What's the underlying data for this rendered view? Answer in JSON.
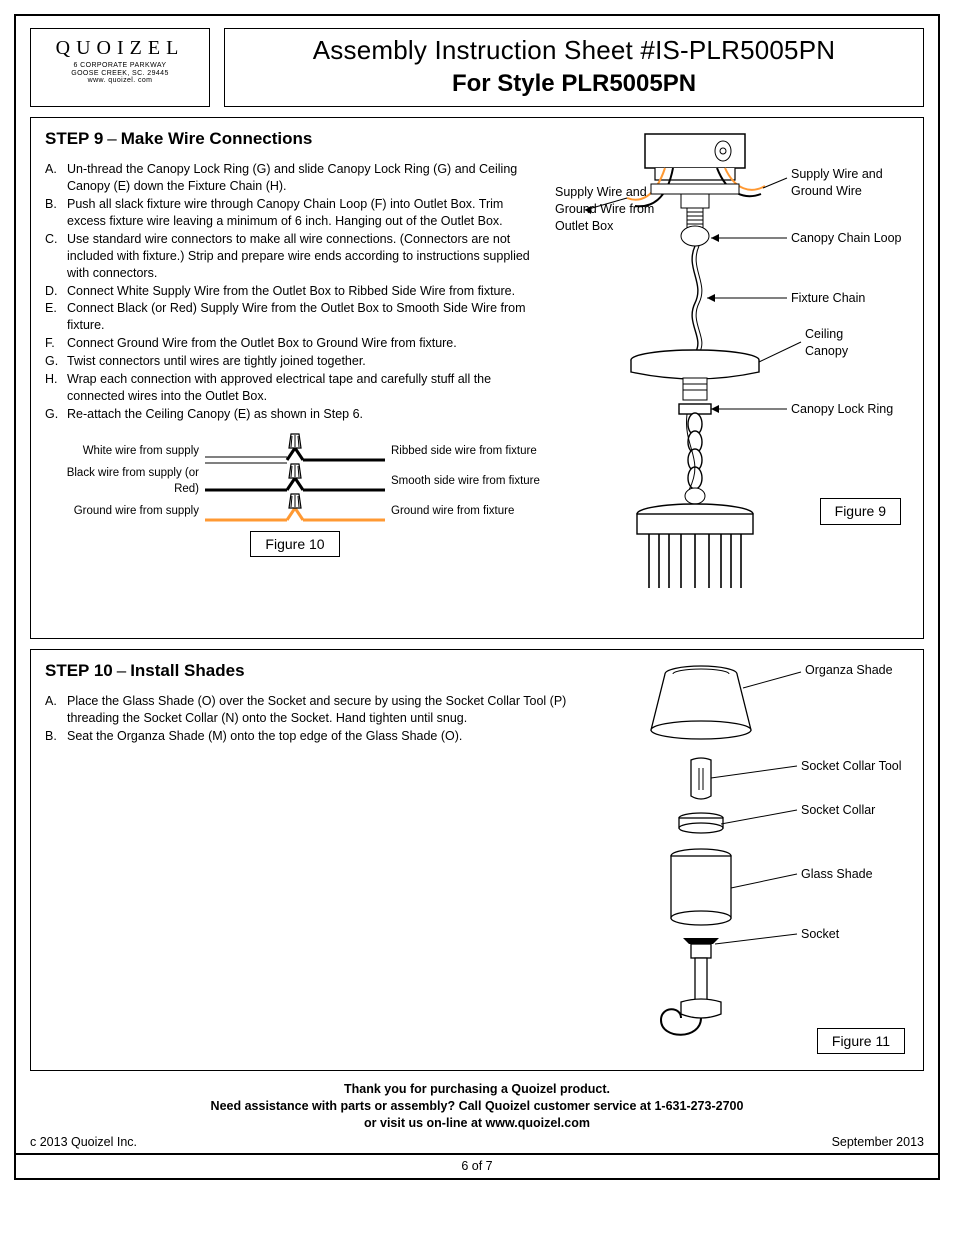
{
  "brand": {
    "name": "QUOIZEL",
    "addr1": "6 CORPORATE PARKWAY",
    "addr2": "GOOSE CREEK, SC. 29445",
    "addr3": "www. quoizel. com"
  },
  "title": {
    "line1": "Assembly Instruction Sheet #IS-PLR5005PN",
    "line2": "For Style PLR5005PN"
  },
  "step9": {
    "title_prefix": "STEP 9",
    "title_suffix": "Make Wire Connections",
    "items": [
      {
        "lbl": "A.",
        "txt": "Un-thread the Canopy Lock Ring (G) and slide Canopy Lock Ring (G) and Ceiling Canopy (E) down the Fixture Chain (H)."
      },
      {
        "lbl": "B.",
        "txt": "Push all slack fixture wire through Canopy Chain Loop (F) into Outlet Box. Trim excess fixture wire leaving a minimum of 6 inch. Hanging out of the Outlet Box."
      },
      {
        "lbl": "C.",
        "txt": "Use standard wire connectors to make all wire connections. (Connectors are not included with fixture.) Strip and prepare wire ends according to instructions supplied with connectors."
      },
      {
        "lbl": "D.",
        "txt": "Connect White Supply Wire from the Outlet Box to Ribbed Side Wire from fixture."
      },
      {
        "lbl": "E.",
        "txt": "Connect Black (or Red) Supply Wire from the Outlet Box to Smooth Side Wire from fixture."
      },
      {
        "lbl": "F.",
        "txt": "Connect Ground Wire from the Outlet Box to Ground Wire from fixture."
      },
      {
        "lbl": "G.",
        "txt": "Twist connectors until wires are tightly joined together."
      },
      {
        "lbl": "H.",
        "txt": "Wrap each connection with approved electrical tape and carefully stuff all the connected wires into the Outlet Box."
      },
      {
        "lbl": "G.",
        "txt": "Re-attach the Ceiling Canopy (E) as shown in Step 6."
      }
    ],
    "wire_rows": [
      {
        "left": "White wire from supply",
        "right": "Ribbed side wire from fixture",
        "lcolor": "#000000",
        "rcolor": "#000000",
        "connector": "#ff9933"
      },
      {
        "left": "Black wire from supply (or Red)",
        "right": "Smooth side wire from fixture",
        "lcolor": "#000000",
        "rcolor": "#000000",
        "connector": "#ff9933"
      },
      {
        "left": "Ground wire from supply",
        "right": "Ground wire from fixture",
        "lcolor": "#ff9933",
        "rcolor": "#ff9933",
        "connector": "#ff9933"
      }
    ],
    "fig10_label": "Figure 10",
    "fig9_label": "Figure 9",
    "fig9_callouts": {
      "supply_box": "Supply Wire and Ground Wire from Outlet Box",
      "supply_gnd": "Supply Wire and Ground Wire",
      "chain_loop": "Canopy Chain Loop",
      "fixture_chain": "Fixture Chain",
      "ceiling_canopy": "Ceiling Canopy",
      "lock_ring": "Canopy Lock Ring",
      "ceiling_canopy_l1": "Ceiling",
      "ceiling_canopy_l2": "Canopy"
    }
  },
  "step10": {
    "title_prefix": "STEP 10",
    "title_suffix": "Install Shades",
    "items": [
      {
        "lbl": "A.",
        "txt": "Place the Glass Shade (O) over the Socket and secure by using the Socket Collar Tool (P) threading the Socket Collar (N) onto the Socket. Hand tighten until snug."
      },
      {
        "lbl": "B.",
        "txt": "Seat the Organza Shade (M) onto the top edge of the Glass Shade (O)."
      }
    ],
    "fig11_label": "Figure 11",
    "callouts": {
      "organza": "Organza Shade",
      "tool": "Socket Collar  Tool",
      "collar": "Socket Collar",
      "glass": "Glass Shade",
      "socket": "Socket"
    }
  },
  "footer": {
    "l1": "Thank you for purchasing a Quoizel product.",
    "l2": "Need assistance with parts or assembly? Call Quoizel customer service at 1-631-273-2700",
    "l3": "or visit us on-line at www.quoizel.com",
    "copyright": "c  2013  Quoizel Inc.",
    "date": "September 2013",
    "page": "6 of 7"
  },
  "colors": {
    "line": "#000000",
    "accent": "#ff9933",
    "bg": "#ffffff"
  }
}
